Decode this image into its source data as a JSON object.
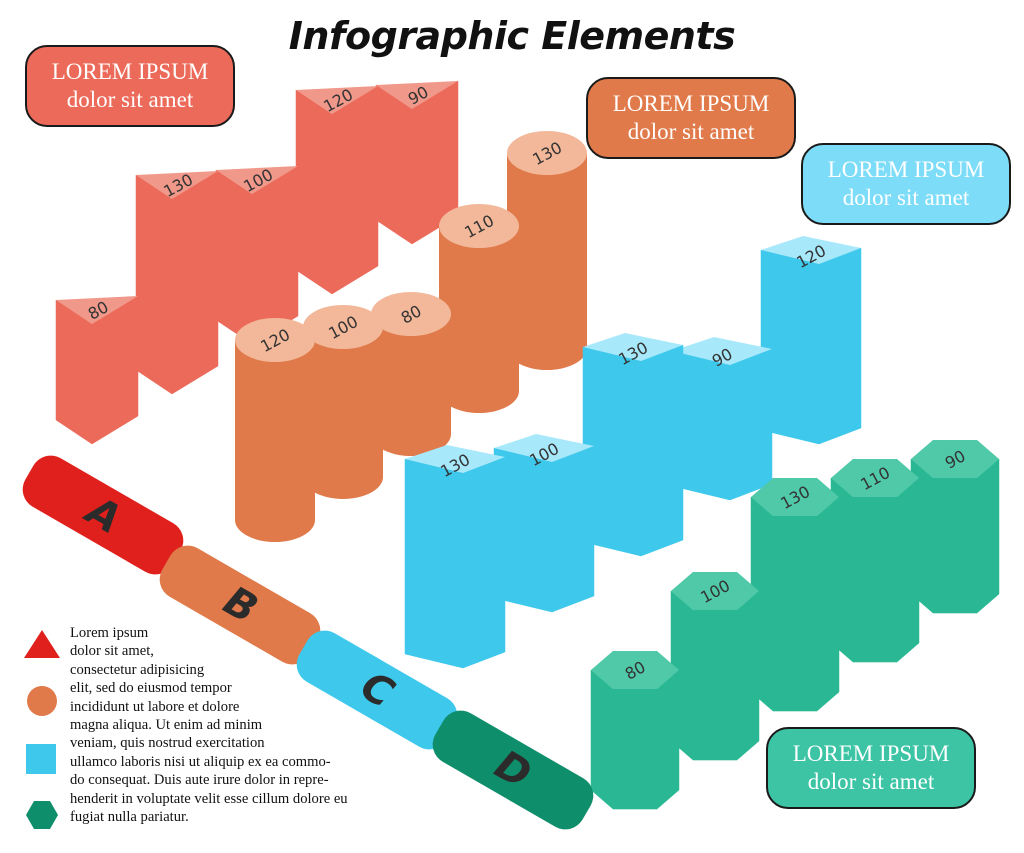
{
  "title": "Infographic Elements",
  "callouts": [
    {
      "line1": "LOREM IPSUM",
      "line2": "dolor sit amet",
      "color": "#ec6a5a"
    },
    {
      "line1": "LOREM IPSUM",
      "line2": "dolor sit amet",
      "color": "#e07a4a"
    },
    {
      "line1": "LOREM IPSUM",
      "line2": "dolor sit amet",
      "color": "#7ddcf8"
    },
    {
      "line1": "LOREM IPSUM",
      "line2": "dolor sit amet",
      "color": "#3cc4a4"
    }
  ],
  "pills": [
    {
      "letter": "A",
      "color": "#e0201c"
    },
    {
      "letter": "B",
      "color": "#e07a4a"
    },
    {
      "letter": "C",
      "color": "#3ec8ec"
    },
    {
      "letter": "D",
      "color": "#0f8e6b"
    }
  ],
  "legend": {
    "icons": [
      "triangle-icon",
      "circle-icon",
      "square-icon",
      "hexagon-icon"
    ],
    "text": "Lorem ipsum\ndolor sit amet,\nconsectetur adipisicing\nelit, sed do eiusmod tempor\nincididunt ut labore et dolore\nmagna aliqua. Ut enim ad minim\nveniam, quis nostrud exercitation\nullamco laboris nisi ut aliquip ex ea commo-\ndo consequat. Duis aute irure dolor in repre-\nhenderit in voluptate velit esse cillum dolore eu\nfugiat nulla pariatur."
  },
  "chart_data": {
    "type": "bar",
    "style": "3d-isometric",
    "series": [
      {
        "shape": "triangular-prism",
        "values": [
          80,
          130,
          100,
          120,
          90
        ],
        "colors": {
          "top": "#f0988a",
          "left": "#e0201c",
          "right": "#ec6a5a"
        }
      },
      {
        "shape": "cylinder",
        "values": [
          120,
          100,
          80,
          110,
          130
        ],
        "colors": {
          "top": "#f2b899",
          "left": "#e07a4a",
          "right": "#e07a4a"
        }
      },
      {
        "shape": "box",
        "values": [
          130,
          100,
          130,
          90,
          120
        ],
        "colors": {
          "top": "#a8e8fb",
          "left": "#7ddcf8",
          "right": "#3ec8ec"
        }
      },
      {
        "shape": "hexagonal-prism",
        "values": [
          80,
          100,
          130,
          110,
          90
        ],
        "colors": {
          "top": "#4fc9a8",
          "left": "#0f8e6b",
          "right": "#2ab894"
        }
      }
    ]
  }
}
